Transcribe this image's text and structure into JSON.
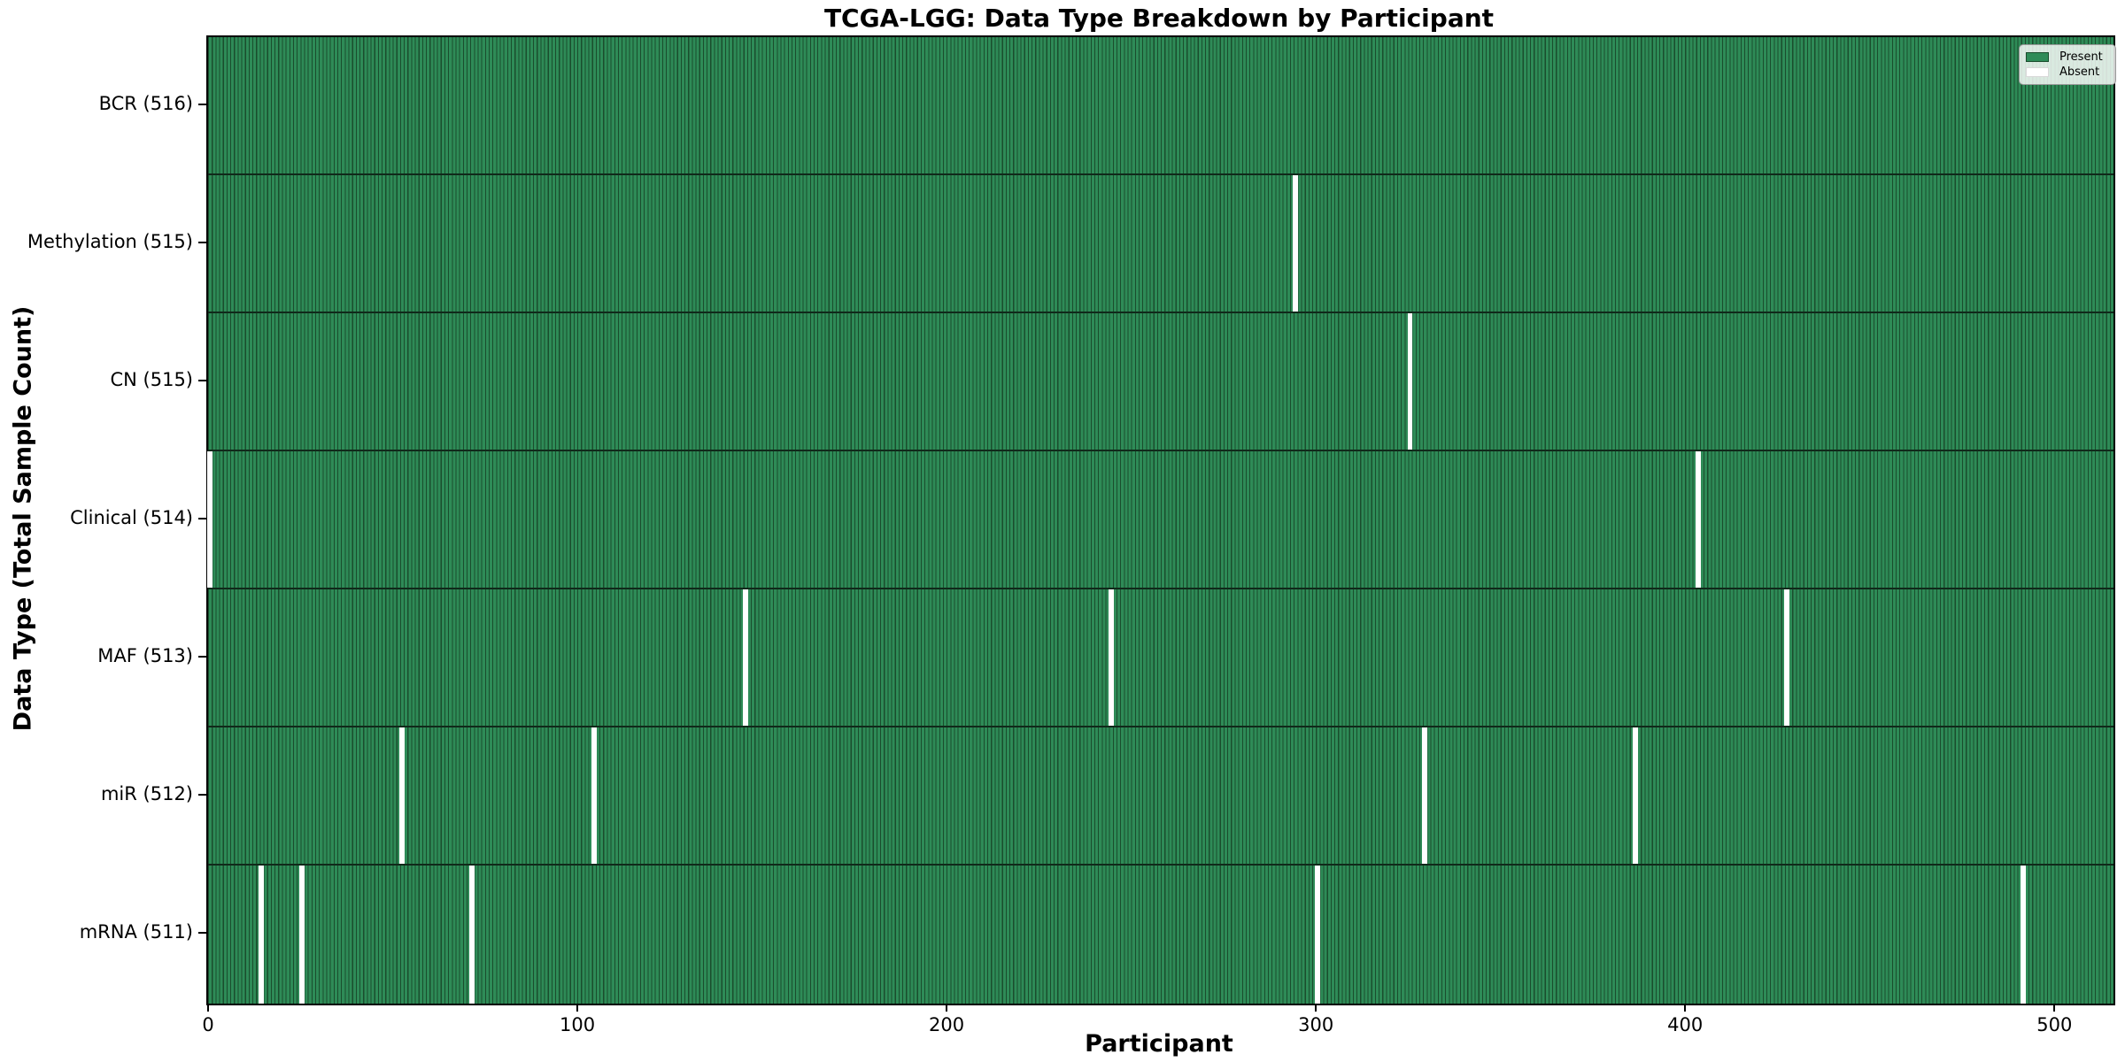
{
  "title": "TCGA-LGG: Data Type Breakdown by Participant",
  "colors": {
    "present": "#2e8b57",
    "present_edge": "#1a4d2d",
    "absent": "#ffffff",
    "row_separator": "#10291a",
    "axis": "#000000",
    "legend_border": "#9a9a9a"
  },
  "legend": {
    "present_label": "Present",
    "absent_label": "Absent"
  },
  "chart_data": {
    "type": "heatmap",
    "title": "TCGA-LGG: Data Type Breakdown by Participant",
    "xlabel": "Participant",
    "ylabel": "Data Type (Total Sample Count)",
    "xlim": [
      0,
      516
    ],
    "x_ticks": [
      0,
      100,
      200,
      300,
      400,
      500
    ],
    "grid": false,
    "legend_position": "upper right",
    "legend": [
      {
        "label": "Present",
        "color": "#2e8b57"
      },
      {
        "label": "Absent",
        "color": "#ffffff"
      }
    ],
    "n_participants": 516,
    "rows": [
      {
        "data_type": "BCR",
        "label": "BCR (516)",
        "present_count": 516,
        "absent_participants": []
      },
      {
        "data_type": "Methylation",
        "label": "Methylation (515)",
        "present_count": 515,
        "absent_participants": [
          294
        ]
      },
      {
        "data_type": "CN",
        "label": "CN (515)",
        "present_count": 515,
        "absent_participants": [
          325
        ]
      },
      {
        "data_type": "Clinical",
        "label": "Clinical (514)",
        "present_count": 514,
        "absent_participants": [
          0,
          403
        ]
      },
      {
        "data_type": "MAF",
        "label": "MAF (513)",
        "present_count": 513,
        "absent_participants": [
          145,
          244,
          427
        ]
      },
      {
        "data_type": "miR",
        "label": "miR (512)",
        "present_count": 512,
        "absent_participants": [
          52,
          104,
          329,
          386
        ]
      },
      {
        "data_type": "mRNA",
        "label": "mRNA (511)",
        "present_count": 511,
        "absent_participants": [
          14,
          25,
          71,
          300,
          491
        ]
      }
    ]
  }
}
